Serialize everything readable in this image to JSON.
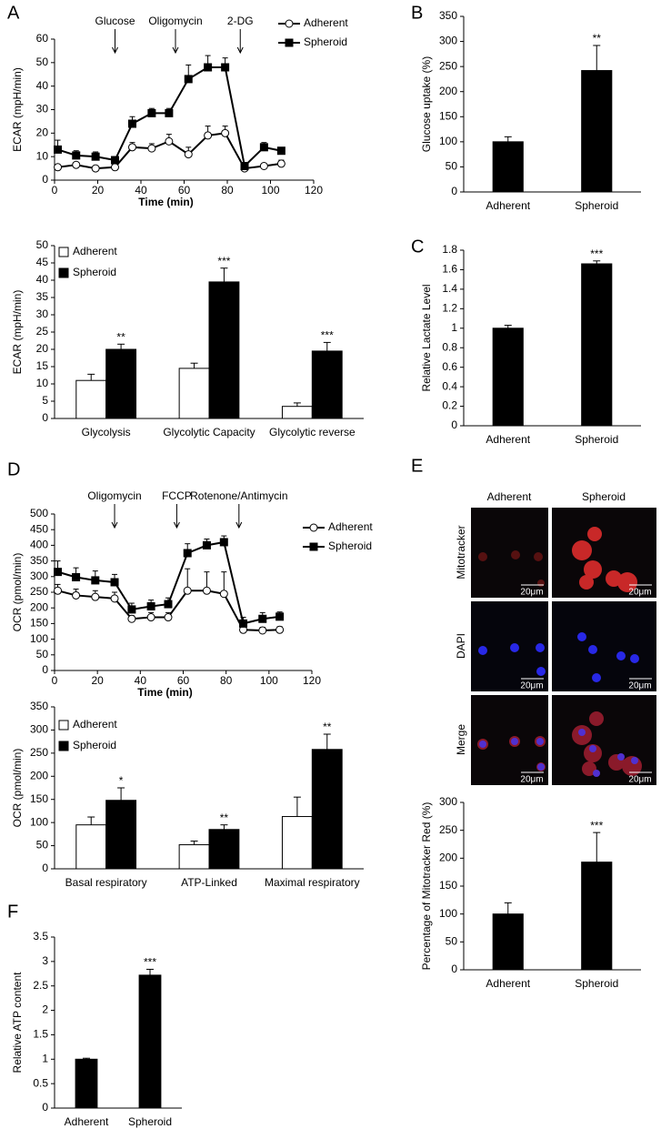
{
  "chart_data": [
    {
      "panel": "A",
      "type": "line",
      "ylabel": "ECAR (mpH/min)",
      "xlabel": "Time (min)",
      "x": [
        1.5,
        10,
        19,
        28,
        36,
        45,
        53,
        62,
        71,
        79,
        88,
        97,
        105
      ],
      "series": [
        {
          "name": "Adherent",
          "color": "#ffffff",
          "marker": "circle",
          "values": [
            5.5,
            6.5,
            5,
            5.5,
            14,
            13.5,
            16.5,
            11,
            19,
            20,
            5,
            6,
            7
          ],
          "errors": [
            1,
            1,
            1,
            1,
            2,
            2,
            3,
            3,
            4,
            3,
            1,
            1,
            1.5
          ]
        },
        {
          "name": "Spheroid",
          "color": "#000000",
          "marker": "square",
          "values": [
            13,
            10.5,
            10,
            8.5,
            24,
            28.5,
            28.5,
            43,
            48,
            48,
            6,
            14,
            12.5
          ],
          "errors": [
            4,
            2,
            2,
            1.5,
            3,
            2,
            2,
            6,
            5,
            4,
            1,
            2,
            1
          ]
        }
      ],
      "annotations": [
        {
          "text": "Glucose",
          "x": 28
        },
        {
          "text": "Oligomycin",
          "x": 56
        },
        {
          "text": "2-DG",
          "x": 86
        }
      ],
      "xlim": [
        0,
        120
      ],
      "xticks": [
        0,
        20,
        40,
        60,
        80,
        100,
        120
      ],
      "ylim": [
        0,
        60
      ],
      "yticks": [
        0,
        10,
        20,
        30,
        40,
        50,
        60
      ],
      "legend": "upper right"
    },
    {
      "type": "bar",
      "ylabel": "ECAR (mpH/min)",
      "categories": [
        "Glycolysis",
        "Glycolytic Capacity",
        "Glycolytic reverse"
      ],
      "series": [
        {
          "name": "Adherent",
          "color": "#ffffff",
          "values": [
            11,
            14.5,
            3.5
          ],
          "errors": [
            1.8,
            1.5,
            1
          ]
        },
        {
          "name": "Spheroid",
          "color": "#000000",
          "values": [
            20,
            39.5,
            19.5
          ],
          "errors": [
            1.5,
            4,
            2.5
          ],
          "significance": [
            "**",
            "***",
            "***"
          ]
        }
      ],
      "ylim": [
        0,
        50
      ],
      "yticks": [
        0,
        5,
        10,
        15,
        20,
        25,
        30,
        35,
        40,
        45,
        50
      ],
      "legend": "upper left"
    },
    {
      "panel": "B",
      "type": "bar",
      "ylabel": "Glucose uptake (%)",
      "categories": [
        "Adherent",
        "Spheroid"
      ],
      "values": [
        100,
        242
      ],
      "errors": [
        10,
        50
      ],
      "significance": [
        null,
        "**"
      ],
      "color": "#000000",
      "ylim": [
        0,
        350
      ],
      "yticks": [
        0,
        50,
        100,
        150,
        200,
        250,
        300,
        350
      ]
    },
    {
      "panel": "C",
      "type": "bar",
      "ylabel": "Relative Lactate Level",
      "categories": [
        "Adherent",
        "Spheroid"
      ],
      "values": [
        1.0,
        1.66
      ],
      "errors": [
        0.03,
        0.03
      ],
      "significance": [
        null,
        "***"
      ],
      "color": "#000000",
      "ylim": [
        0,
        1.8
      ],
      "yticks": [
        0,
        0.2,
        0.4,
        0.6,
        0.8,
        1,
        1.2,
        1.4,
        1.6,
        1.8
      ]
    },
    {
      "panel": "D",
      "type": "line",
      "ylabel": "OCR (pmol/min)",
      "xlabel": "Time (min)",
      "x": [
        1.5,
        10,
        19,
        28,
        36,
        45,
        53,
        62,
        71,
        79,
        88,
        97,
        105
      ],
      "series": [
        {
          "name": "Adherent",
          "color": "#ffffff",
          "marker": "circle",
          "values": [
            255,
            240,
            235,
            230,
            165,
            170,
            170,
            255,
            255,
            245,
            130,
            128,
            130
          ],
          "errors": [
            20,
            20,
            20,
            20,
            10,
            15,
            15,
            70,
            60,
            70,
            10,
            10,
            10
          ]
        },
        {
          "name": "Spheroid",
          "color": "#000000",
          "marker": "square",
          "values": [
            315,
            298,
            288,
            282,
            195,
            205,
            212,
            375,
            400,
            410,
            150,
            165,
            172
          ],
          "errors": [
            35,
            30,
            30,
            25,
            20,
            20,
            20,
            30,
            20,
            20,
            20,
            20,
            15
          ]
        }
      ],
      "annotations": [
        {
          "text": "Oligomycin",
          "x": 28
        },
        {
          "text": "FCCP",
          "x": 57
        },
        {
          "text": "Rotenone/Antimycin",
          "x": 86
        }
      ],
      "xlim": [
        0,
        120
      ],
      "xticks": [
        0,
        20,
        40,
        60,
        80,
        100,
        120
      ],
      "ylim": [
        0,
        500
      ],
      "yticks": [
        0,
        50,
        100,
        150,
        200,
        250,
        300,
        350,
        400,
        450,
        500
      ],
      "legend": "upper right"
    },
    {
      "type": "bar",
      "ylabel": "OCR (pmol/min)",
      "categories": [
        "Basal respiratory",
        "ATP-Linked",
        "Maximal respiratory"
      ],
      "series": [
        {
          "name": "Adherent",
          "color": "#ffffff",
          "values": [
            95,
            52,
            113
          ],
          "errors": [
            17,
            8,
            42
          ]
        },
        {
          "name": "Spheroid",
          "color": "#000000",
          "values": [
            148,
            85,
            258
          ],
          "errors": [
            27,
            10,
            33
          ],
          "significance": [
            "*",
            "**",
            "**"
          ]
        }
      ],
      "ylim": [
        0,
        350
      ],
      "yticks": [
        0,
        50,
        100,
        150,
        200,
        250,
        300,
        350
      ],
      "legend": "upper left"
    },
    {
      "type": "bar",
      "ylabel": "Percentage of Mitotracker Red (%)",
      "categories": [
        "Adherent",
        "Spheroid"
      ],
      "values": [
        100,
        193
      ],
      "errors": [
        20,
        53
      ],
      "significance": [
        null,
        "***"
      ],
      "color": "#000000",
      "ylim": [
        0,
        300
      ],
      "yticks": [
        0,
        50,
        100,
        150,
        200,
        250,
        300
      ]
    },
    {
      "panel": "F",
      "type": "bar",
      "ylabel": "Relative ATP content",
      "categories": [
        "Adherent",
        "Spheroid"
      ],
      "values": [
        1.0,
        2.72
      ],
      "errors": [
        0.02,
        0.12
      ],
      "significance": [
        null,
        "***"
      ],
      "color": "#000000",
      "ylim": [
        0,
        3.5
      ],
      "yticks": [
        0,
        0.5,
        1,
        1.5,
        2,
        2.5,
        3,
        3.5
      ]
    }
  ],
  "micrographs": {
    "panel": "E",
    "columns": [
      "Adherent",
      "Spheroid"
    ],
    "rows": [
      "Mitotracker",
      "DAPI",
      "Merge"
    ],
    "scale_bar": "20μm"
  }
}
